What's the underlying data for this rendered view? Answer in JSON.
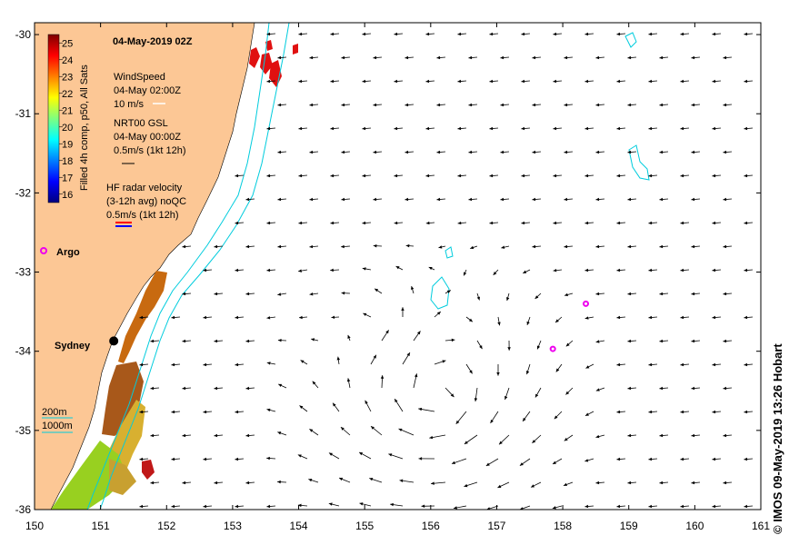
{
  "title": "04-May-2019 02Z",
  "colorbar": {
    "label": "Filled 4h comp, p50, All Sats",
    "ticks": [
      "25",
      "24",
      "23",
      "22",
      "21",
      "20",
      "19",
      "18",
      "17",
      "16"
    ],
    "range": [
      15.5,
      25.5
    ],
    "colors": [
      "#00007f",
      "#0000ff",
      "#007fff",
      "#00ffff",
      "#7fff7f",
      "#ffff00",
      "#ff7f00",
      "#ff0000",
      "#7f0000"
    ]
  },
  "legend": {
    "wind_title": "WindSpeed",
    "wind_time": "04-May 02:00Z",
    "wind_scale": "10 m/s",
    "gsl_title": "NRT00 GSL",
    "gsl_time": "04-May 00:00Z",
    "gsl_scale": "0.5m/s (1kt 12h)",
    "hf_title": "HF radar velocity",
    "hf_sub": "(3-12h avg) noQC",
    "hf_scale": "0.5m/s (1kt 12h)",
    "argo_label": "Argo",
    "city_label": "Sydney",
    "contour_200": "200m",
    "contour_1000": "1000m"
  },
  "axes": {
    "x_ticks": [
      "150",
      "151",
      "152",
      "153",
      "154",
      "155",
      "156",
      "157",
      "158",
      "159",
      "160",
      "161"
    ],
    "y_ticks": [
      "-30",
      "-31",
      "-32",
      "-33",
      "-34",
      "-35",
      "-36"
    ],
    "lon_range": [
      150,
      161
    ],
    "lat_range": [
      -36,
      -29.85
    ]
  },
  "argo_floats": [
    {
      "lon": 157.85,
      "lat": -33.97
    },
    {
      "lon": 158.35,
      "lat": -33.4
    }
  ],
  "sydney": {
    "lon": 151.2,
    "lat": -33.87
  },
  "credit": "© IMOS 09-May-2019 13:26 Hobart",
  "colors": {
    "land": "#fcc795",
    "bathy": "#00ccdd",
    "argo": "#ee00ee",
    "wind_arrow": "#ffffff",
    "hf_red": "#ff0000",
    "hf_blue": "#0000ff"
  }
}
